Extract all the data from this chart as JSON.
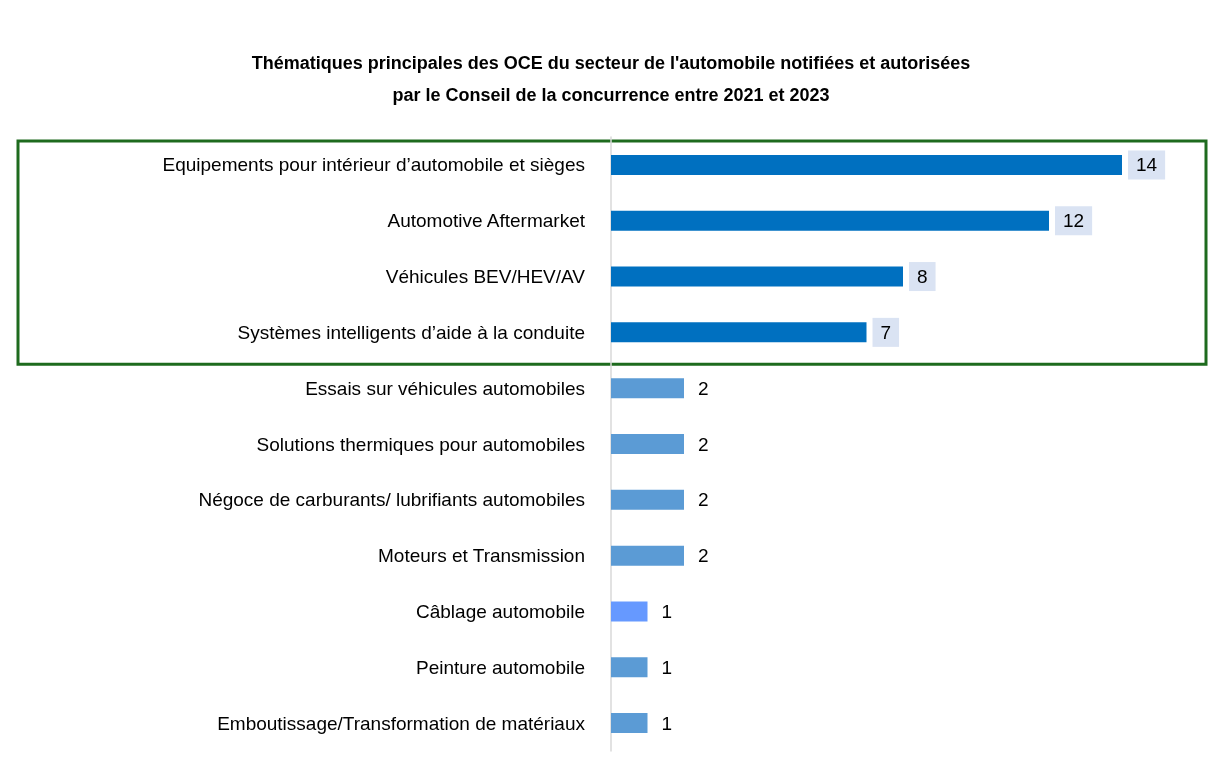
{
  "chart_data": {
    "type": "bar",
    "orientation": "horizontal",
    "title": "Thématiques principales des OCE du secteur de l'automobile notifiées et autorisées\npar le Conseil de la concurrence entre 2021 et 2023",
    "categories": [
      "Equipements pour intérieur d’automobile et sièges",
      "Automotive Aftermarket",
      "Véhicules BEV/HEV/AV",
      "Systèmes intelligents d’aide à la conduite",
      "Essais sur véhicules automobiles",
      "Solutions thermiques pour automobiles",
      "Négoce de carburants/ lubrifiants automobiles",
      "Moteurs et Transmission",
      "Câblage automobile",
      "Peinture automobile",
      "Emboutissage/Transformation de matériaux"
    ],
    "values": [
      14,
      12,
      8,
      7,
      2,
      2,
      2,
      2,
      1,
      1,
      1
    ],
    "colors": [
      "#0070c0",
      "#0070c0",
      "#0070c0",
      "#0070c0",
      "#5b9bd5",
      "#5b9bd5",
      "#5b9bd5",
      "#5b9bd5",
      "#6699ff",
      "#5b9bd5",
      "#5b9bd5"
    ],
    "data_labels": true
  }
}
